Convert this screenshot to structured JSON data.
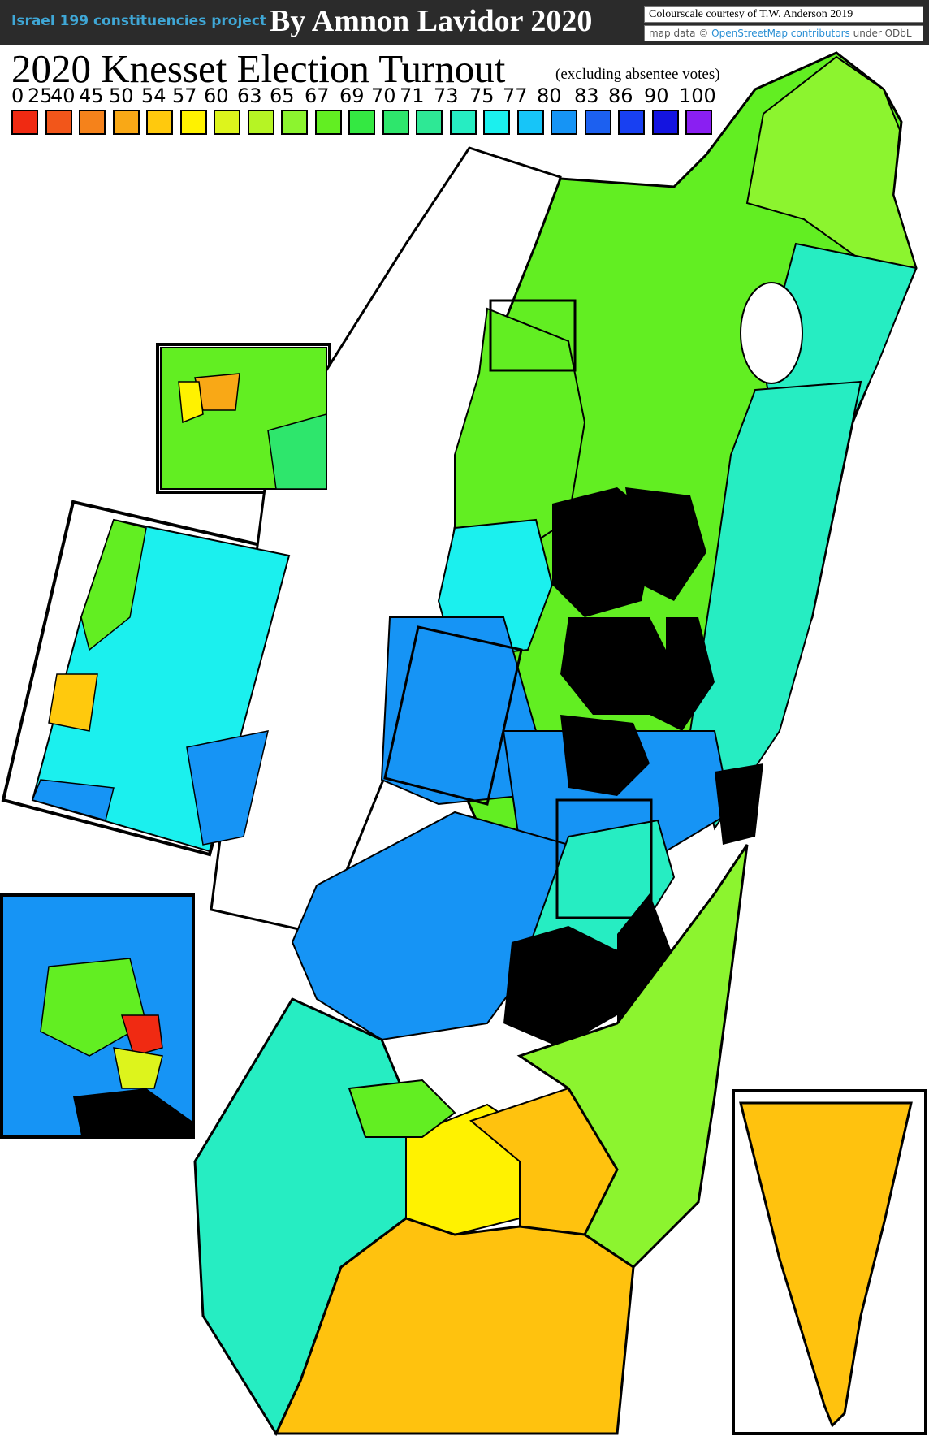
{
  "header": {
    "project": "Israel 199 constituencies project",
    "author": "By Amnon Lavidor 2020",
    "credit_colour": "Colourscale courtesy of T.W. Anderson 2019",
    "credit_map_prefix": "map data ©",
    "credit_map_link": "OpenStreetMap contributors",
    "credit_map_suffix": "under ODbL"
  },
  "title": "2020 Knesset Election Turnout",
  "subtitle": "(excluding absentee votes)",
  "legend": {
    "labels": [
      "0",
      "25",
      "40",
      "45",
      "50",
      "54",
      "57",
      "60",
      "63",
      "65",
      "67",
      "69",
      "70",
      "71",
      "73",
      "75",
      "77",
      "80",
      "83",
      "86",
      "90",
      "100"
    ],
    "colors": [
      "#f02a12",
      "#f2561a",
      "#f5821b",
      "#f9a816",
      "#ffc90d",
      "#fff200",
      "#ddf41c",
      "#b6f424",
      "#8cf42f",
      "#62ee22",
      "#34e842",
      "#2ee66c",
      "#2ee895",
      "#26edc2",
      "#1bf0ee",
      "#17c5f8",
      "#1694f5",
      "#1c60f0",
      "#1840f2",
      "#1414e0",
      "#8a1ff2"
    ]
  },
  "map": {
    "palette": {
      "yellow_orange": "#ffc20e",
      "light_green": "#8cf42f",
      "green": "#62ee22",
      "sea_green": "#26edc2",
      "cyan": "#1bf0ee",
      "blue": "#1694f5",
      "black": "#000000"
    }
  }
}
